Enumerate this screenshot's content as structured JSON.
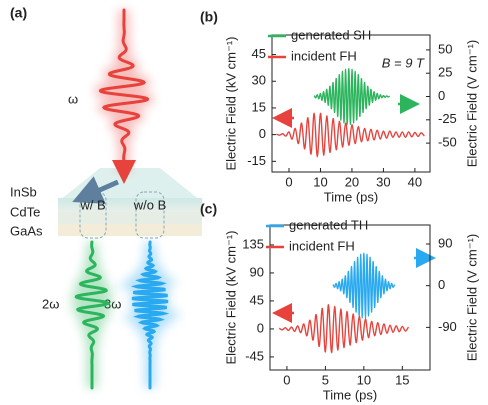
{
  "panel_a": {
    "label": "(a)",
    "input": "ω",
    "layers": [
      "InSb",
      "CdTe",
      "GaAs"
    ],
    "regions": [
      "w/ B",
      "w/o B"
    ],
    "outputs": [
      "2ω",
      "3ω"
    ]
  },
  "chart_data": [
    {
      "type": "line",
      "panel_label": "(b)",
      "x_label": "Time (ps)",
      "y_label": "Electric Field (kV cm⁻¹)",
      "y2_label": "Electric Field (V cm⁻¹)",
      "annotation": "B = 9 T",
      "legend": "upper left",
      "xlim": [
        -5.4,
        44.8
      ],
      "xticks": [
        0,
        10,
        20,
        30,
        40
      ],
      "ylim": [
        -21,
        56
      ],
      "yticks": [
        -15,
        0,
        15,
        30,
        45
      ],
      "y2lim": [
        -81,
        66
      ],
      "y2ticks": [
        -50,
        -25,
        0,
        25,
        50
      ],
      "series": [
        {
          "name": "generated SH",
          "color": "#2db55d",
          "axis": "y2",
          "x": [
            8,
            8.5,
            9,
            9.5,
            10,
            10.5,
            11,
            11.5,
            12,
            12.5,
            13,
            13.5,
            14,
            14.5,
            15,
            15.5,
            16,
            16.5,
            17,
            17.5,
            18,
            18.5,
            19,
            19.5,
            20,
            20.5,
            21,
            21.5,
            22,
            22.5,
            23,
            23.5,
            24,
            24.5,
            25,
            25.5,
            26,
            26.5,
            27,
            27.5,
            28,
            28.5,
            29,
            29.5,
            30,
            30.5,
            31,
            31.5,
            32
          ],
          "values": [
            1.0,
            -1.4,
            1.9,
            -2.4,
            3.2,
            -4.0,
            5.1,
            -6.3,
            7.7,
            -9.3,
            11,
            -13,
            15,
            -17,
            19.2,
            -21.3,
            23.4,
            -25.2,
            26.8,
            -28.2,
            29.2,
            -29.8,
            30,
            -29.8,
            29.2,
            -28.2,
            26.8,
            -25.2,
            23.4,
            -21.3,
            19.2,
            -17,
            15,
            -13,
            11,
            -9.3,
            7.7,
            -6.3,
            5.1,
            -4.0,
            3.2,
            -2.4,
            1.9,
            -1.4,
            1.0,
            -0.8,
            0.6,
            -0.4,
            0.3
          ]
        },
        {
          "name": "incident FH",
          "color": "#e8423c",
          "x": [
            -4,
            -3,
            -2,
            -1,
            0,
            1,
            2,
            3,
            4,
            5,
            6,
            7,
            8,
            9,
            10,
            11,
            12,
            13,
            14,
            15,
            16,
            17,
            18,
            19,
            20,
            21,
            22,
            23,
            24,
            25,
            26,
            27,
            28,
            29,
            30,
            31,
            32,
            33,
            34,
            35,
            36,
            37,
            38,
            39,
            40,
            41,
            42,
            43
          ],
          "values": [
            0.3,
            -0.3,
            0.5,
            -0.8,
            1.5,
            -2.5,
            3.5,
            -5,
            6.5,
            -8,
            9.5,
            -11,
            12,
            -12.5,
            12,
            -11.5,
            10.5,
            -10,
            9,
            -8.5,
            7.5,
            -7,
            6.5,
            -6,
            5.5,
            -5,
            4.5,
            -4,
            3.5,
            -3.5,
            3,
            -3,
            2.5,
            -2.5,
            2,
            -2,
            2,
            -1.5,
            1.5,
            -1.5,
            1.5,
            -1.5,
            1.5,
            -1.2,
            1.2,
            -1,
            1,
            -0.8
          ]
        }
      ]
    },
    {
      "type": "line",
      "panel_label": "(c)",
      "x_label": "Time (ps)",
      "y_label": "Electric Field (kV cm⁻¹)",
      "y2_label": "Electric Field (V cm⁻¹)",
      "legend": "upper left",
      "xlim": [
        -2.2,
        18.6
      ],
      "xticks": [
        0,
        5,
        10,
        15
      ],
      "ylim": [
        -66,
        167
      ],
      "yticks": [
        -45,
        0,
        45,
        90,
        135
      ],
      "y2lim": [
        -182,
        131
      ],
      "y2ticks": [
        -90,
        0,
        90
      ],
      "series": [
        {
          "name": "generated TH",
          "color": "#29a9ef",
          "axis": "y2",
          "x": [
            6,
            6.2,
            6.4,
            6.6,
            6.8,
            7,
            7.2,
            7.4,
            7.6,
            7.8,
            8,
            8.2,
            8.4,
            8.6,
            8.8,
            9,
            9.2,
            9.4,
            9.6,
            9.8,
            10,
            10.2,
            10.4,
            10.6,
            10.8,
            11,
            11.2,
            11.4,
            11.6,
            11.8,
            12,
            12.2,
            12.4,
            12.6,
            12.8,
            13,
            13.2,
            13.4,
            13.6,
            13.8,
            14
          ],
          "values": [
            2.6,
            -3.5,
            4.8,
            -6.4,
            8.4,
            -10.9,
            13.9,
            -17.3,
            21.3,
            -25.8,
            30.7,
            -35.9,
            41.2,
            -46.7,
            52,
            -56.9,
            61.3,
            -65,
            67.7,
            -69.4,
            70,
            -69.4,
            67.7,
            -65,
            61.3,
            -56.9,
            52,
            -46.7,
            41.2,
            -35.9,
            30.7,
            -25.8,
            21.3,
            -17.3,
            13.9,
            -10.9,
            8.4,
            -6.4,
            4.8,
            -3.5,
            2.6
          ]
        },
        {
          "name": "incident FH",
          "color": "#e8423c",
          "x": [
            -1,
            -0.6,
            -0.2,
            0.2,
            0.6,
            1,
            1.4,
            1.8,
            2.2,
            2.6,
            3,
            3.4,
            3.8,
            4.2,
            4.6,
            5,
            5.4,
            5.8,
            6.2,
            6.6,
            7,
            7.4,
            7.8,
            8.2,
            8.6,
            9,
            9.4,
            9.8,
            10.2,
            10.6,
            11,
            11.4,
            11.8,
            12.2,
            12.6,
            13,
            13.4,
            13.8,
            14.2,
            14.6,
            15,
            15.4,
            15.8
          ],
          "values": [
            1,
            -1.5,
            2,
            -2.5,
            3,
            -4,
            5,
            -6,
            8,
            -11,
            14,
            -18,
            23,
            -28,
            33,
            -37,
            39,
            -38,
            36,
            -34,
            32,
            -30,
            28,
            -26,
            24,
            -22,
            20,
            -18,
            16,
            -14,
            12,
            -11,
            10,
            -9,
            8,
            -7,
            6,
            -5.5,
            5,
            -4.5,
            4,
            -3.5,
            3
          ]
        }
      ]
    }
  ]
}
